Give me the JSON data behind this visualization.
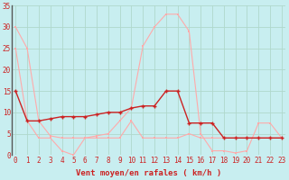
{
  "xlabel": "Vent moyen/en rafales ( km/h )",
  "background_color": "#c8eef0",
  "grid_color": "#b0d8cc",
  "x_values": [
    0,
    1,
    2,
    3,
    4,
    5,
    6,
    7,
    8,
    9,
    10,
    11,
    12,
    13,
    14,
    15,
    16,
    17,
    18,
    19,
    20,
    21,
    22,
    23
  ],
  "line_dark_y": [
    15,
    8,
    8,
    8.5,
    9,
    9,
    9,
    9.5,
    10,
    10,
    11,
    11.5,
    11.5,
    15,
    15,
    7.5,
    7.5,
    7.5,
    4,
    4,
    4,
    4,
    4,
    4
  ],
  "line_light_y": [
    30,
    25,
    8,
    4.5,
    4,
    4,
    4,
    4.5,
    5,
    8,
    11,
    25.5,
    30,
    33,
    33,
    29,
    5,
    1,
    1,
    0.5,
    1,
    7.5,
    7.5,
    4
  ],
  "line_med_y": [
    25,
    8,
    4,
    4,
    1,
    0,
    4,
    4,
    4,
    4,
    8,
    4,
    4,
    4,
    4,
    5,
    4,
    4,
    4,
    4,
    4,
    4,
    4,
    4
  ],
  "line_dark_color": "#cc2222",
  "line_light_color": "#ffaaaa",
  "line_med_color": "#ffaaaa",
  "marker_color": "#cc2222",
  "marker_light_color": "#ffaaaa",
  "ylim": [
    0,
    35
  ],
  "xlim": [
    0,
    23
  ],
  "yticks": [
    0,
    5,
    10,
    15,
    20,
    25,
    30,
    35
  ],
  "xticks": [
    0,
    1,
    2,
    3,
    4,
    5,
    6,
    7,
    8,
    9,
    10,
    11,
    12,
    13,
    14,
    15,
    16,
    17,
    18,
    19,
    20,
    21,
    22,
    23
  ],
  "tick_fontsize": 5.5,
  "xlabel_fontsize": 6.5
}
